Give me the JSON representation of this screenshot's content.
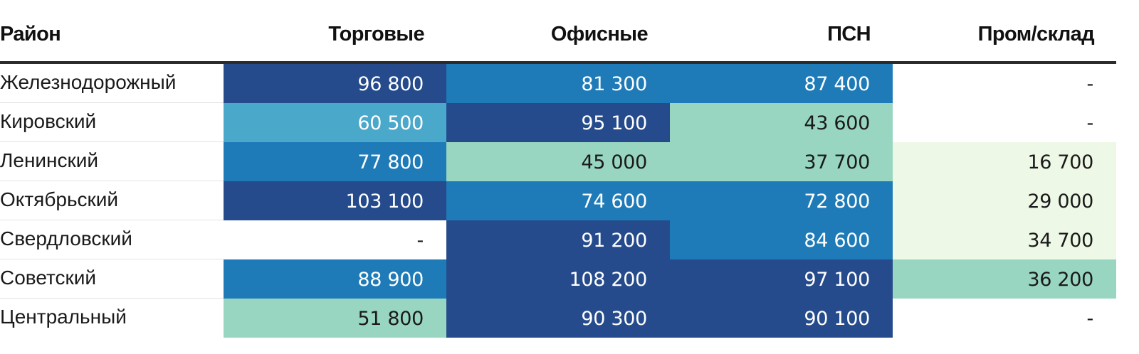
{
  "chart_data": {
    "type": "table",
    "columns": [
      "Район",
      "Торговые",
      "Офисные",
      "ПСН",
      "Пром/склад"
    ],
    "rows": [
      {
        "label": "Железнодорожный",
        "values": [
          "96 800",
          "81 300",
          "87 400",
          "-"
        ],
        "colors": [
          "#254b8c",
          "#1f7bb8",
          "#1f7bb8",
          "#ffffff"
        ]
      },
      {
        "label": "Кировский",
        "values": [
          "60 500",
          "95 100",
          "43 600",
          "-"
        ],
        "colors": [
          "#4aa8cb",
          "#254b8c",
          "#98d6c1",
          "#ffffff"
        ]
      },
      {
        "label": "Ленинский",
        "values": [
          "77 800",
          "45 000",
          "37 700",
          "16 700"
        ],
        "colors": [
          "#1f7bb8",
          "#98d6c1",
          "#98d6c1",
          "#eef8e6"
        ]
      },
      {
        "label": "Октябрьский",
        "values": [
          "103 100",
          "74 600",
          "72 800",
          "29 000"
        ],
        "colors": [
          "#254b8c",
          "#1f7bb8",
          "#1f7bb8",
          "#eef8e6"
        ]
      },
      {
        "label": "Свердловский",
        "values": [
          "-",
          "91 200",
          "84 600",
          "34 700"
        ],
        "colors": [
          "#ffffff",
          "#254b8c",
          "#1f7bb8",
          "#eef8e6"
        ]
      },
      {
        "label": "Советский",
        "values": [
          "88 900",
          "108 200",
          "97 100",
          "36 200"
        ],
        "colors": [
          "#1f7bb8",
          "#254b8c",
          "#254b8c",
          "#98d6c1"
        ]
      },
      {
        "label": "Центральный",
        "values": [
          "51 800",
          "90 300",
          "90 100",
          "-"
        ],
        "colors": [
          "#98d6c1",
          "#254b8c",
          "#254b8c",
          "#ffffff"
        ]
      }
    ]
  }
}
